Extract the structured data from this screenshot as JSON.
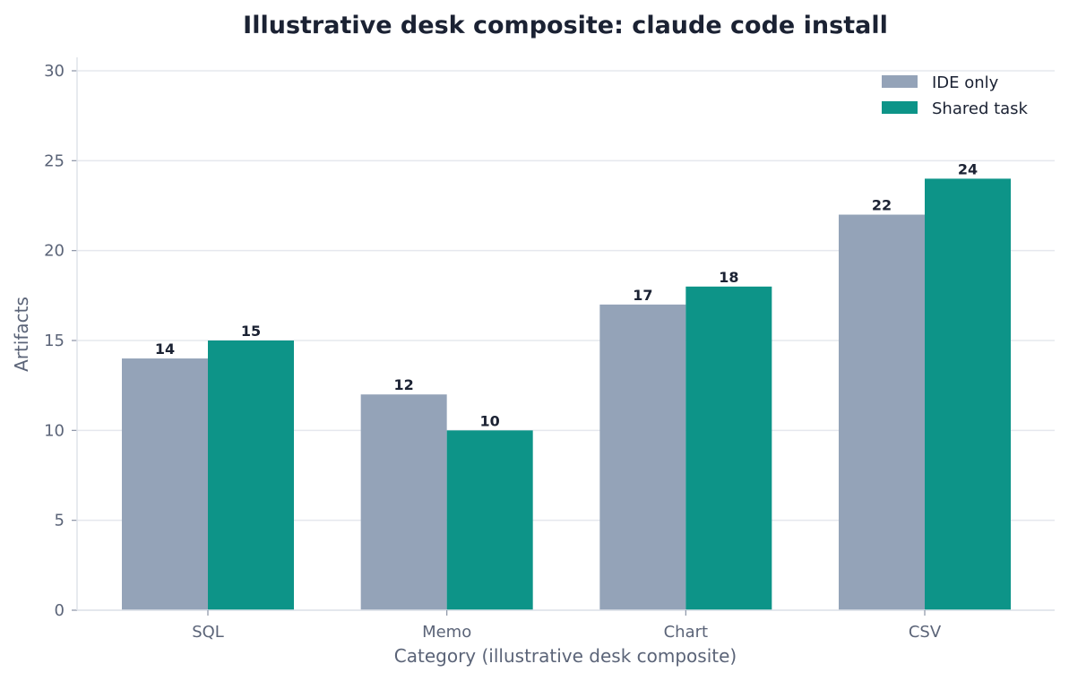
{
  "chart_data": {
    "type": "bar",
    "title": "Illustrative desk composite: claude code install",
    "xlabel": "Category (illustrative desk composite)",
    "ylabel": "Artifacts",
    "categories": [
      "SQL",
      "Memo",
      "Chart",
      "CSV"
    ],
    "series": [
      {
        "name": "IDE only",
        "values": [
          14,
          12,
          17,
          22
        ],
        "color": "#94a3b8"
      },
      {
        "name": "Shared task",
        "values": [
          15,
          10,
          18,
          24
        ],
        "color": "#0d9488"
      }
    ],
    "ylim": [
      0,
      30
    ],
    "yticks": [
      0,
      5,
      10,
      15,
      20,
      25,
      30
    ],
    "grid": true,
    "legend_position": "top-right"
  }
}
